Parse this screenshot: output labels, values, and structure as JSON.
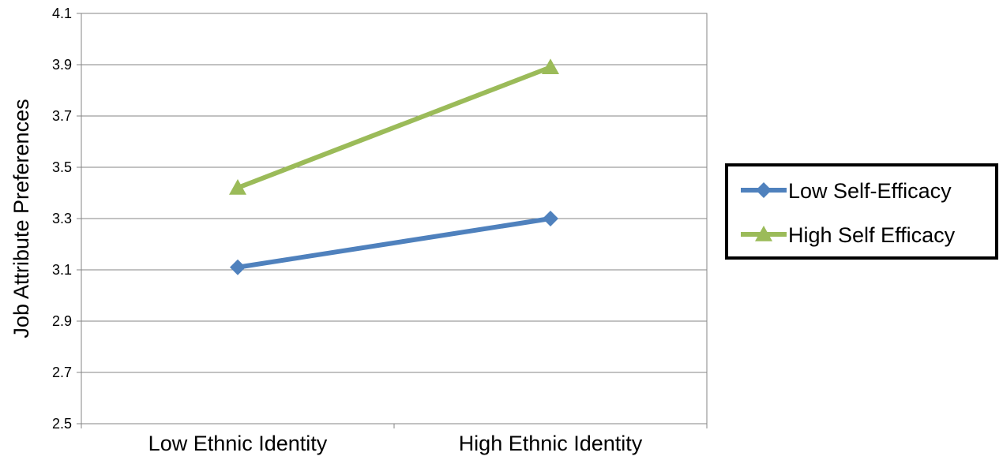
{
  "chart_data": {
    "type": "line",
    "categories": [
      "Low Ethnic Identity",
      "High Ethnic Identity"
    ],
    "series": [
      {
        "name": "Low Self-Efficacy",
        "values": [
          3.11,
          3.3
        ],
        "color": "#4F81BD",
        "marker": "diamond"
      },
      {
        "name": "High Self Efficacy",
        "values": [
          3.42,
          3.89
        ],
        "color": "#9BBB59",
        "marker": "triangle"
      }
    ],
    "ylabel": "Job Attribute Preferences",
    "xlabel": "",
    "ylim": [
      2.5,
      4.1
    ],
    "yticks": [
      2.5,
      2.7,
      2.9,
      3.1,
      3.3,
      3.5,
      3.7,
      3.9,
      4.1
    ],
    "ytick_labels": [
      "2.5",
      "2.7",
      "2.9",
      "3.1",
      "3.3",
      "3.5",
      "3.7",
      "3.9",
      "4.1"
    ],
    "grid": true,
    "legend_position": "right"
  }
}
